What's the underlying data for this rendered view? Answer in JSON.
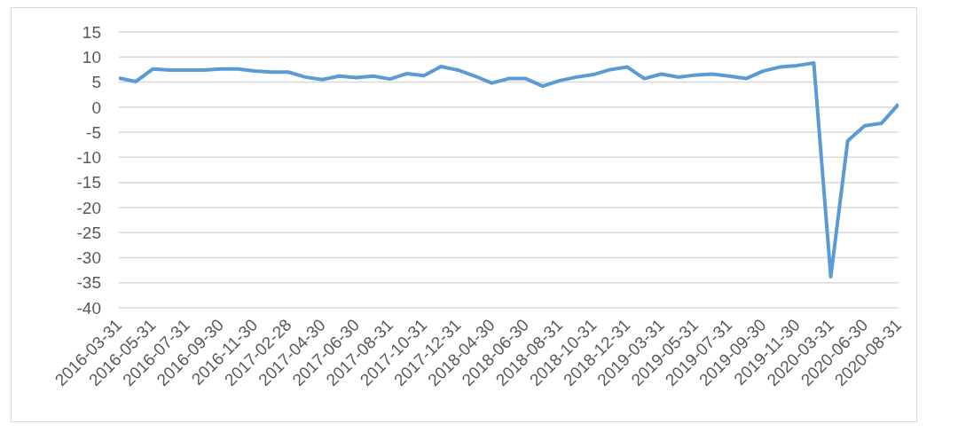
{
  "chart_data": {
    "type": "line",
    "categories": [
      "2016-03-31",
      null,
      "2016-05-31",
      null,
      "2016-07-31",
      null,
      "2016-09-30",
      null,
      "2016-11-30",
      null,
      "2017-02-28",
      null,
      "2017-04-30",
      null,
      "2017-06-30",
      null,
      "2017-08-31",
      null,
      "2017-10-31",
      null,
      "2017-12-31",
      null,
      "2018-04-30",
      null,
      "2018-06-30",
      null,
      "2018-08-31",
      null,
      "2018-10-31",
      null,
      "2018-12-31",
      null,
      "2019-03-31",
      null,
      "2019-05-31",
      null,
      "2019-07-31",
      null,
      "2019-09-30",
      null,
      "2019-11-30",
      null,
      "2020-03-31",
      null,
      "2020-06-30",
      null,
      "2020-08-31"
    ],
    "series": [
      {
        "color": "#5b9bd5",
        "values": [
          5.8,
          5.1,
          7.6,
          7.4,
          7.4,
          7.4,
          7.6,
          7.6,
          7.2,
          7.0,
          7.0,
          6.0,
          5.5,
          6.2,
          5.9,
          6.2,
          5.6,
          6.7,
          6.3,
          8.1,
          7.4,
          6.2,
          4.8,
          5.7,
          5.7,
          4.2,
          5.3,
          6.0,
          6.5,
          7.5,
          8.0,
          5.7,
          6.6,
          6.0,
          6.4,
          6.6,
          6.2,
          5.7,
          7.2,
          8.0,
          8.3,
          8.8,
          -33.8,
          -6.7,
          -3.7,
          -3.2,
          0.6
        ]
      }
    ],
    "ylim": [
      -40,
      15
    ],
    "yticks": [
      -40,
      -35,
      -30,
      -25,
      -20,
      -15,
      -10,
      -5,
      0,
      5,
      10,
      15
    ],
    "grid": "y",
    "legend": false,
    "marker": "none",
    "line_style": "solid"
  }
}
